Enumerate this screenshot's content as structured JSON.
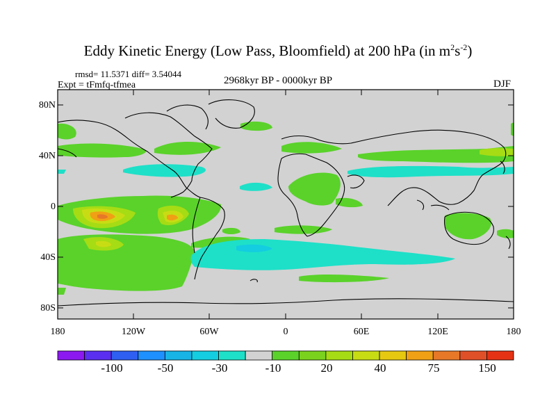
{
  "figure": {
    "title_main": "Eddy Kinetic Energy (Low Pass, Bloomfield) at 200 hPa (in m",
    "title_sup1": "2",
    "title_s": "s",
    "title_sup2": "-2",
    "title_end": ")",
    "stats": "rmsd= 11.5371 diff= 3.54044",
    "experiment": "Expt = tFmfq-tfmea",
    "period": "2968kyr BP - 0000kyr BP",
    "season": "DJF"
  },
  "axes": {
    "y_ticks": [
      "80N",
      "40N",
      "0",
      "40S",
      "80S"
    ],
    "x_ticks": [
      "180",
      "120W",
      "60W",
      "0",
      "60E",
      "120E",
      "180"
    ]
  },
  "colorbar": {
    "colors": [
      "#8c19f0",
      "#5a2ff0",
      "#2f5ff0",
      "#1e90ff",
      "#18b4e6",
      "#14cde0",
      "#1ee0c8",
      "#d2d2d2",
      "#5ad22a",
      "#7ad21e",
      "#a6dc14",
      "#c8dc14",
      "#e6c810",
      "#f0a014",
      "#e67828",
      "#e05028",
      "#e63214"
    ],
    "labels": [
      "-100",
      "-50",
      "-30",
      "-10",
      "20",
      "40",
      "75",
      "150"
    ]
  },
  "map_colors": {
    "background": "#d2d2d2",
    "green": "#5ad22a",
    "light_green": "#a6dc14",
    "yellow": "#c8dc14",
    "orange": "#f0a014",
    "dark_orange": "#e67828",
    "cyan": "#1ee0c8",
    "aqua": "#14cde0"
  }
}
